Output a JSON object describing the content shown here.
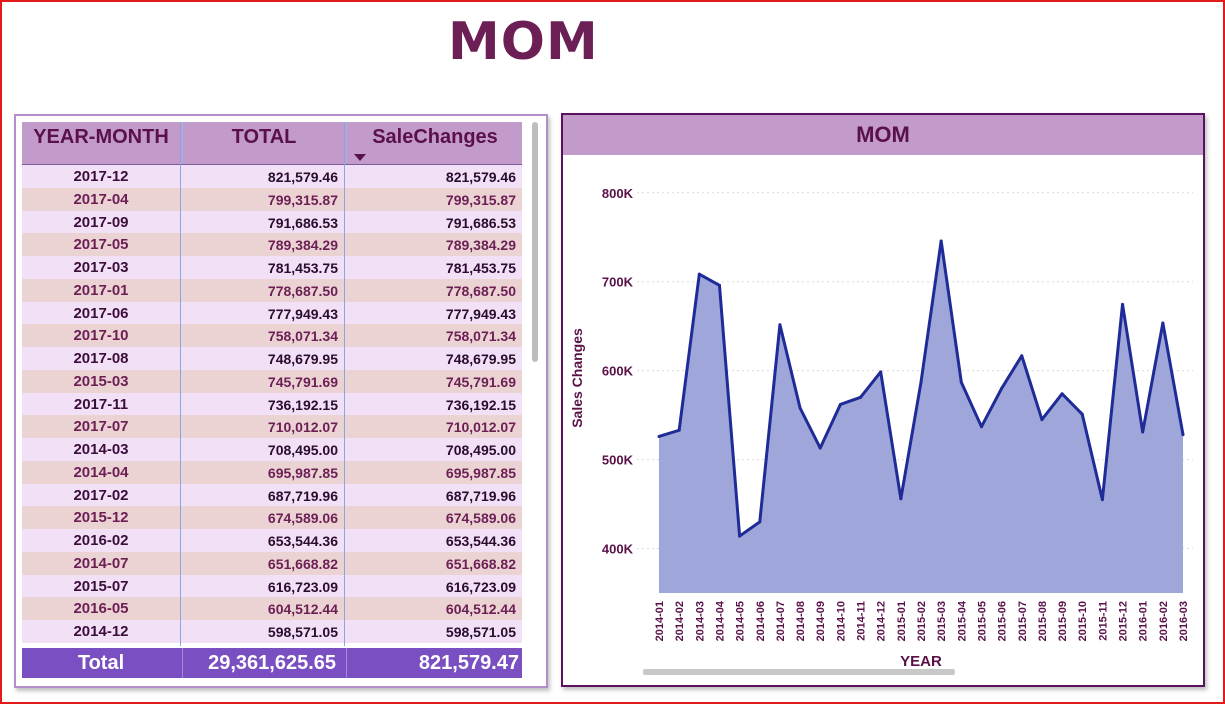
{
  "page": {
    "title": "MOM",
    "frame_color": "#e21a1a",
    "title_color": "#6b1f55"
  },
  "table": {
    "headers": {
      "year_month": "YEAR-MONTH",
      "total": "TOTAL",
      "sale_changes": "SaleChanges"
    },
    "sort_indicator": "sort-descending-icon",
    "rows": [
      {
        "ym": "2017-12",
        "total": "821,579.46",
        "sc": "821,579.46"
      },
      {
        "ym": "2017-04",
        "total": "799,315.87",
        "sc": "799,315.87"
      },
      {
        "ym": "2017-09",
        "total": "791,686.53",
        "sc": "791,686.53"
      },
      {
        "ym": "2017-05",
        "total": "789,384.29",
        "sc": "789,384.29"
      },
      {
        "ym": "2017-03",
        "total": "781,453.75",
        "sc": "781,453.75"
      },
      {
        "ym": "2017-01",
        "total": "778,687.50",
        "sc": "778,687.50"
      },
      {
        "ym": "2017-06",
        "total": "777,949.43",
        "sc": "777,949.43"
      },
      {
        "ym": "2017-10",
        "total": "758,071.34",
        "sc": "758,071.34"
      },
      {
        "ym": "2017-08",
        "total": "748,679.95",
        "sc": "748,679.95"
      },
      {
        "ym": "2015-03",
        "total": "745,791.69",
        "sc": "745,791.69"
      },
      {
        "ym": "2017-11",
        "total": "736,192.15",
        "sc": "736,192.15"
      },
      {
        "ym": "2017-07",
        "total": "710,012.07",
        "sc": "710,012.07"
      },
      {
        "ym": "2014-03",
        "total": "708,495.00",
        "sc": "708,495.00"
      },
      {
        "ym": "2014-04",
        "total": "695,987.85",
        "sc": "695,987.85"
      },
      {
        "ym": "2017-02",
        "total": "687,719.96",
        "sc": "687,719.96"
      },
      {
        "ym": "2015-12",
        "total": "674,589.06",
        "sc": "674,589.06"
      },
      {
        "ym": "2016-02",
        "total": "653,544.36",
        "sc": "653,544.36"
      },
      {
        "ym": "2014-07",
        "total": "651,668.82",
        "sc": "651,668.82"
      },
      {
        "ym": "2015-07",
        "total": "616,723.09",
        "sc": "616,723.09"
      },
      {
        "ym": "2016-05",
        "total": "604,512.44",
        "sc": "604,512.44"
      },
      {
        "ym": "2014-12",
        "total": "598,571.05",
        "sc": "598,571.05"
      }
    ],
    "footer": {
      "label": "Total",
      "total": "29,361,625.65",
      "sale_changes": "821,579.47"
    },
    "colors": {
      "header": "#c39bcb",
      "row_odd": "#f2e0f6",
      "row_even": "#ecd3d3",
      "footer": "#7a4fc2"
    }
  },
  "chart_data": {
    "type": "area",
    "title": "MOM",
    "xlabel": "YEAR",
    "ylabel": "Sales Changes",
    "x": [
      "2014-01",
      "2014-02",
      "2014-03",
      "2014-04",
      "2014-05",
      "2014-06",
      "2014-07",
      "2014-08",
      "2014-09",
      "2014-10",
      "2014-11",
      "2014-12",
      "2015-01",
      "2015-02",
      "2015-03",
      "2015-04",
      "2015-05",
      "2015-06",
      "2015-07",
      "2015-08",
      "2015-09",
      "2015-10",
      "2015-11",
      "2015-12",
      "2016-01",
      "2016-02",
      "2016-03"
    ],
    "values": [
      526000,
      533000,
      708495,
      695988,
      414000,
      430000,
      651669,
      558000,
      513000,
      562000,
      570000,
      598571,
      456000,
      587000,
      745792,
      587000,
      537000,
      580000,
      616723,
      545000,
      574000,
      551000,
      455000,
      674589,
      531000,
      653544,
      528000
    ],
    "y_ticks": [
      400000,
      500000,
      600000,
      700000,
      800000
    ],
    "y_tick_labels": [
      "400K",
      "500K",
      "600K",
      "700K",
      "800K"
    ],
    "ylim": [
      350000,
      820000
    ],
    "grid": true,
    "colors": {
      "fill": "#9fa6d9",
      "line": "#1f2b96",
      "header": "#c39bcb",
      "text": "#5a1148"
    }
  }
}
